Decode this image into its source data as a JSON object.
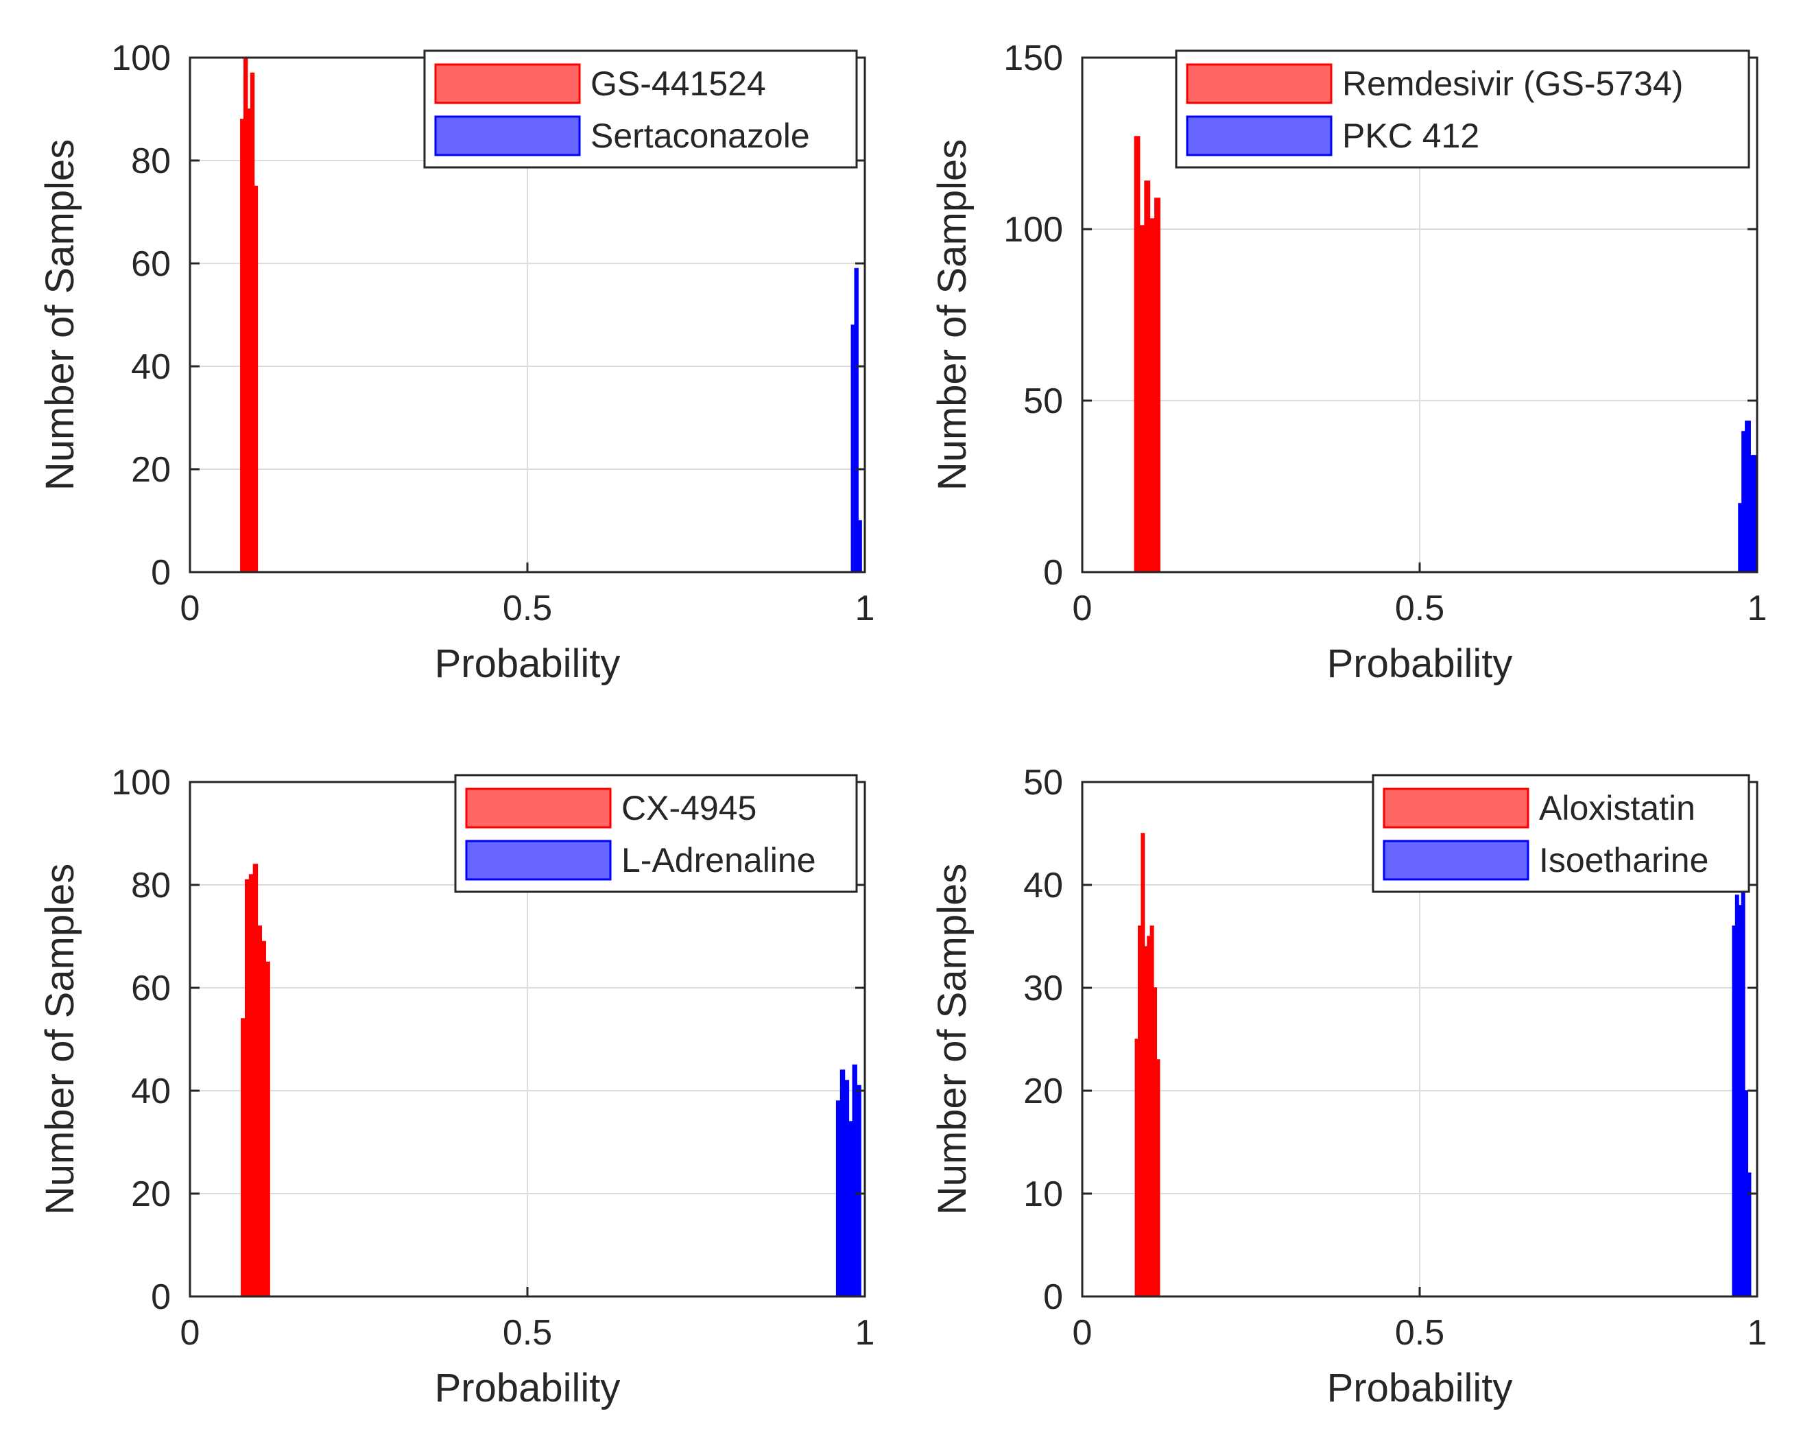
{
  "figure": {
    "layout": "2x2 grid of histograms"
  },
  "colors": {
    "series_red": "#ff0000",
    "series_red_patch": "#ff6666",
    "series_blue": "#0000ff",
    "series_blue_patch": "#6666ff"
  },
  "chart_data": [
    {
      "type": "bar",
      "title": "",
      "xlabel": "Probability",
      "ylabel": "Number of Samples",
      "xlim": [
        0,
        1
      ],
      "ylim": [
        0,
        100
      ],
      "xticks": [
        0,
        0.5,
        1
      ],
      "xtick_labels": [
        "0",
        "0.5",
        "1"
      ],
      "yticks": [
        0,
        20,
        40,
        60,
        80,
        100
      ],
      "ytick_labels": [
        "0",
        "20",
        "40",
        "60",
        "80",
        "100"
      ],
      "grid": true,
      "legend_position": "top-right",
      "bin_width": 0.005,
      "series": [
        {
          "name": "GS-441524",
          "color": "#ff0000",
          "legend_patch": "#ff6666",
          "x": [
            0.0775,
            0.0825,
            0.0875,
            0.0925,
            0.0975
          ],
          "values": [
            88,
            100,
            90,
            97,
            75
          ]
        },
        {
          "name": "Sertaconazole",
          "color": "#0000ff",
          "legend_patch": "#6666ff",
          "x": [
            0.9825,
            0.9875,
            0.9925
          ],
          "values": [
            48,
            59,
            10
          ]
        }
      ]
    },
    {
      "type": "bar",
      "title": "",
      "xlabel": "Probability",
      "ylabel": "Number of Samples",
      "xlim": [
        0,
        1
      ],
      "ylim": [
        0,
        150
      ],
      "xticks": [
        0,
        0.5,
        1
      ],
      "xtick_labels": [
        "0",
        "0.5",
        "1"
      ],
      "yticks": [
        0,
        50,
        100,
        150
      ],
      "ytick_labels": [
        "0",
        "50",
        "100",
        "150"
      ],
      "grid": true,
      "legend_position": "top-right",
      "bin_width": 0.0075,
      "series": [
        {
          "name": "Remdesivir (GS-5734)",
          "color": "#ff0000",
          "legend_patch": "#ff6666",
          "x": [
            0.0813,
            0.0888,
            0.0963,
            0.1038,
            0.1113
          ],
          "values": [
            127,
            101,
            114,
            103,
            109
          ]
        },
        {
          "name": "PKC 412",
          "color": "#0000ff",
          "legend_patch": "#6666ff",
          "x": [
            0.9763,
            0.9813,
            0.9863,
            0.9913,
            0.9963
          ],
          "values": [
            20,
            41,
            44,
            34,
            34
          ]
        }
      ]
    },
    {
      "type": "bar",
      "title": "",
      "xlabel": "Probability",
      "ylabel": "Number of Samples",
      "xlim": [
        0,
        1
      ],
      "ylim": [
        0,
        100
      ],
      "xticks": [
        0,
        0.5,
        1
      ],
      "xtick_labels": [
        "0",
        "0.5",
        "1"
      ],
      "yticks": [
        0,
        20,
        40,
        60,
        80,
        100
      ],
      "ytick_labels": [
        "0",
        "20",
        "40",
        "60",
        "80",
        "100"
      ],
      "grid": true,
      "legend_position": "top-right",
      "bin_width": 0.006,
      "series": [
        {
          "name": "CX-4945",
          "color": "#ff0000",
          "legend_patch": "#ff6666",
          "x": [
            0.079,
            0.085,
            0.091,
            0.097,
            0.103,
            0.109,
            0.115
          ],
          "values": [
            54,
            81,
            82,
            84,
            72,
            69,
            65
          ]
        },
        {
          "name": "L-Adrenaline",
          "color": "#0000ff",
          "legend_patch": "#6666ff",
          "x": [
            0.961,
            0.967,
            0.973,
            0.979,
            0.985,
            0.991
          ],
          "values": [
            38,
            44,
            42,
            34,
            45,
            41
          ]
        }
      ]
    },
    {
      "type": "bar",
      "title": "",
      "xlabel": "Probability",
      "ylabel": "Number of Samples",
      "xlim": [
        0,
        1
      ],
      "ylim": [
        0,
        50
      ],
      "xticks": [
        0,
        0.5,
        1
      ],
      "xtick_labels": [
        "0",
        "0.5",
        "1"
      ],
      "yticks": [
        0,
        10,
        20,
        30,
        40,
        50
      ],
      "ytick_labels": [
        "0",
        "10",
        "20",
        "30",
        "40",
        "50"
      ],
      "grid": true,
      "legend_position": "top-right",
      "bin_width": 0.0045,
      "series": [
        {
          "name": "Aloxistatin",
          "color": "#ff0000",
          "legend_patch": "#ff6666",
          "x": [
            0.0808,
            0.0853,
            0.0898,
            0.0943,
            0.0988,
            0.1033,
            0.1078,
            0.1123
          ],
          "values": [
            25,
            36,
            45,
            34,
            35,
            36,
            30,
            23
          ]
        },
        {
          "name": "Isoetharine",
          "color": "#0000ff",
          "legend_patch": "#6666ff",
          "x": [
            0.9658,
            0.9703,
            0.9748,
            0.9793,
            0.9838,
            0.9883
          ],
          "values": [
            36,
            39,
            38,
            42,
            20,
            12
          ]
        }
      ]
    }
  ]
}
